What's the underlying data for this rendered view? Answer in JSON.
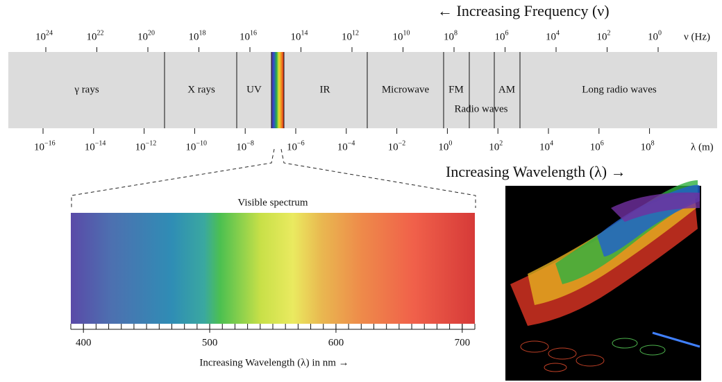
{
  "top_caption": "← Increasing Frequency (ν)",
  "frequency_unit": "ν (Hz)",
  "frequency_ticks": [
    {
      "base": "10",
      "exp": "24"
    },
    {
      "base": "10",
      "exp": "22"
    },
    {
      "base": "10",
      "exp": "20"
    },
    {
      "base": "10",
      "exp": "18"
    },
    {
      "base": "10",
      "exp": "16"
    },
    {
      "base": "10",
      "exp": "14"
    },
    {
      "base": "10",
      "exp": "12"
    },
    {
      "base": "10",
      "exp": "10"
    },
    {
      "base": "10",
      "exp": "8"
    },
    {
      "base": "10",
      "exp": "6"
    },
    {
      "base": "10",
      "exp": "4"
    },
    {
      "base": "10",
      "exp": "2"
    },
    {
      "base": "10",
      "exp": "0"
    }
  ],
  "bands": [
    "γ rays",
    "X rays",
    "UV",
    "IR",
    "Microwave",
    "FM",
    "AM",
    "Long radio waves"
  ],
  "radio_label": "Radio waves",
  "wavelength_ticks": [
    {
      "base": "10",
      "exp": "−16"
    },
    {
      "base": "10",
      "exp": "−14"
    },
    {
      "base": "10",
      "exp": "−12"
    },
    {
      "base": "10",
      "exp": "−10"
    },
    {
      "base": "10",
      "exp": "−8"
    },
    {
      "base": "10",
      "exp": "−6"
    },
    {
      "base": "10",
      "exp": "−4"
    },
    {
      "base": "10",
      "exp": "−2"
    },
    {
      "base": "10",
      "exp": "0"
    },
    {
      "base": "10",
      "exp": "2"
    },
    {
      "base": "10",
      "exp": "4"
    },
    {
      "base": "10",
      "exp": "6"
    },
    {
      "base": "10",
      "exp": "8"
    }
  ],
  "wavelength_unit": "λ (m)",
  "bottom_caption": "Increasing Wavelength (λ) →",
  "visible_spectrum": {
    "title": "Visible spectrum",
    "xlim": [
      390,
      710
    ],
    "xticks": [
      400,
      500,
      600,
      700
    ],
    "axis_label": "Increasing Wavelength (λ) in nm →"
  }
}
